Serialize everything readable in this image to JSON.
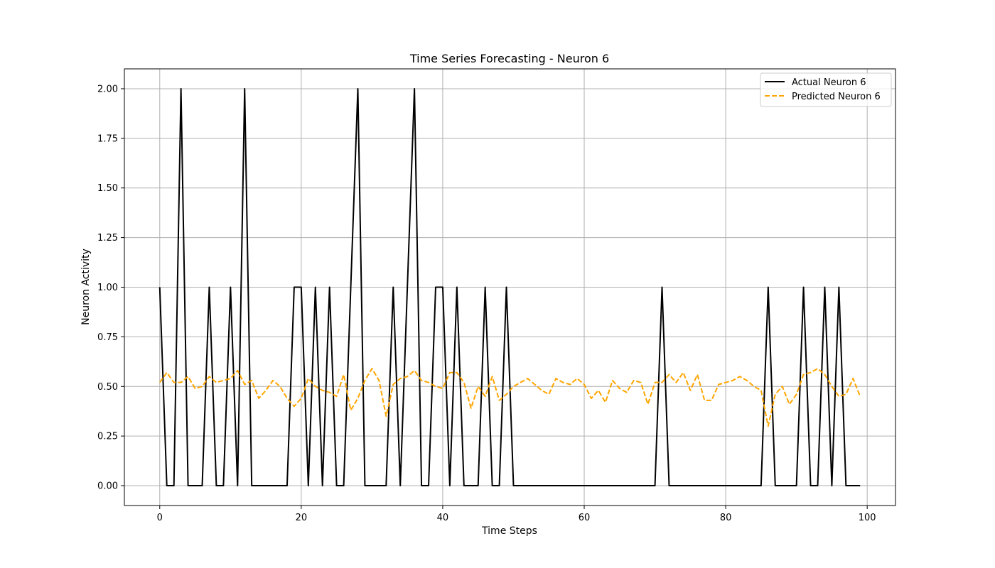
{
  "chart_data": {
    "type": "line",
    "title": "Time Series Forecasting - Neuron 6",
    "xlabel": "Time Steps",
    "ylabel": "Neuron Activity",
    "xlim": [
      -5,
      104
    ],
    "ylim": [
      -0.1,
      2.1
    ],
    "xticks": [
      0,
      20,
      40,
      60,
      80,
      100
    ],
    "xtick_labels": [
      "0",
      "20",
      "40",
      "60",
      "80",
      "100"
    ],
    "yticks": [
      0,
      0.25,
      0.5,
      0.75,
      1.0,
      1.25,
      1.5,
      1.75,
      2.0
    ],
    "ytick_labels": [
      "0.00",
      "0.25",
      "0.50",
      "0.75",
      "1.00",
      "1.25",
      "1.50",
      "1.75",
      "2.00"
    ],
    "grid": true,
    "legend_position": "top-right",
    "series": [
      {
        "name": "Actual Neuron 6",
        "color": "#000000",
        "style": "solid",
        "values": [
          1,
          0,
          0,
          2,
          0,
          0,
          0,
          1,
          0,
          0,
          1,
          0,
          2,
          0,
          0,
          0,
          0,
          0,
          0,
          1,
          1,
          0,
          1,
          0,
          1,
          0,
          0,
          1,
          2,
          0,
          0,
          0,
          0,
          1,
          0,
          1,
          2,
          0,
          0,
          1,
          1,
          0,
          1,
          0,
          0,
          0,
          1,
          0,
          0,
          1,
          0,
          0,
          0,
          0,
          0,
          0,
          0,
          0,
          0,
          0,
          0,
          0,
          0,
          0,
          0,
          0,
          0,
          0,
          0,
          0,
          0,
          1,
          0,
          0,
          0,
          0,
          0,
          0,
          0,
          0,
          0,
          0,
          0,
          0,
          0,
          0,
          1,
          0,
          0,
          0,
          0,
          1,
          0,
          0,
          1,
          0,
          1,
          0,
          0,
          0
        ]
      },
      {
        "name": "Predicted Neuron 6",
        "color": "#ffa500",
        "style": "dashed",
        "values": [
          0.52,
          0.57,
          0.52,
          0.52,
          0.55,
          0.49,
          0.5,
          0.55,
          0.52,
          0.53,
          0.54,
          0.58,
          0.51,
          0.53,
          0.44,
          0.48,
          0.53,
          0.5,
          0.44,
          0.4,
          0.44,
          0.54,
          0.5,
          0.48,
          0.47,
          0.45,
          0.56,
          0.38,
          0.44,
          0.53,
          0.59,
          0.53,
          0.35,
          0.51,
          0.54,
          0.55,
          0.58,
          0.53,
          0.52,
          0.5,
          0.49,
          0.57,
          0.57,
          0.52,
          0.39,
          0.5,
          0.45,
          0.55,
          0.43,
          0.46,
          0.5,
          0.52,
          0.54,
          0.51,
          0.48,
          0.46,
          0.54,
          0.52,
          0.51,
          0.54,
          0.51,
          0.44,
          0.48,
          0.42,
          0.53,
          0.49,
          0.47,
          0.53,
          0.52,
          0.41,
          0.52,
          0.52,
          0.56,
          0.52,
          0.57,
          0.48,
          0.56,
          0.43,
          0.43,
          0.51,
          0.52,
          0.53,
          0.55,
          0.53,
          0.5,
          0.48,
          0.3,
          0.46,
          0.5,
          0.41,
          0.46,
          0.56,
          0.57,
          0.59,
          0.56,
          0.5,
          0.45,
          0.46,
          0.54,
          0.45
        ]
      }
    ]
  }
}
